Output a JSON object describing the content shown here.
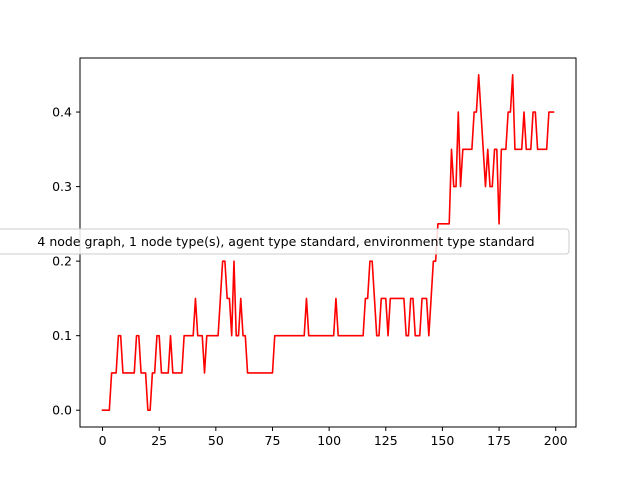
{
  "chart_data": {
    "type": "line",
    "title": "",
    "xlabel": "",
    "ylabel": "",
    "xlim": [
      -9.95,
      208.95
    ],
    "ylim": [
      -0.0225,
      0.4725
    ],
    "grid": false,
    "legend_position": "center-left",
    "x_ticks": [
      0,
      25,
      50,
      75,
      100,
      125,
      150,
      175,
      200
    ],
    "y_ticks": [
      0.0,
      0.1,
      0.2,
      0.3,
      0.4
    ],
    "series": [
      {
        "name": "4 node graph, 1 node type(s), agent type standard, environment type standard",
        "color": "#ff0000",
        "points": [
          [
            0,
            0
          ],
          [
            1,
            0
          ],
          [
            2,
            0
          ],
          [
            3,
            0
          ],
          [
            4,
            0.05
          ],
          [
            5,
            0.05
          ],
          [
            6,
            0.05
          ],
          [
            7,
            0.1
          ],
          [
            8,
            0.1
          ],
          [
            9,
            0.05
          ],
          [
            10,
            0.05
          ],
          [
            11,
            0.05
          ],
          [
            12,
            0.05
          ],
          [
            13,
            0.05
          ],
          [
            14,
            0.05
          ],
          [
            15,
            0.1
          ],
          [
            16,
            0.1
          ],
          [
            17,
            0.05
          ],
          [
            18,
            0.05
          ],
          [
            19,
            0.05
          ],
          [
            20,
            0
          ],
          [
            21,
            0
          ],
          [
            22,
            0.05
          ],
          [
            23,
            0.05
          ],
          [
            24,
            0.1
          ],
          [
            25,
            0.1
          ],
          [
            26,
            0.05
          ],
          [
            27,
            0.05
          ],
          [
            28,
            0.05
          ],
          [
            29,
            0.05
          ],
          [
            30,
            0.1
          ],
          [
            31,
            0.05
          ],
          [
            32,
            0.05
          ],
          [
            33,
            0.05
          ],
          [
            34,
            0.05
          ],
          [
            35,
            0.05
          ],
          [
            36,
            0.1
          ],
          [
            37,
            0.1
          ],
          [
            38,
            0.1
          ],
          [
            39,
            0.1
          ],
          [
            40,
            0.1
          ],
          [
            41,
            0.15
          ],
          [
            42,
            0.1
          ],
          [
            43,
            0.1
          ],
          [
            44,
            0.1
          ],
          [
            45,
            0.05
          ],
          [
            46,
            0.1
          ],
          [
            47,
            0.1
          ],
          [
            48,
            0.1
          ],
          [
            49,
            0.1
          ],
          [
            50,
            0.1
          ],
          [
            51,
            0.1
          ],
          [
            52,
            0.15
          ],
          [
            53,
            0.2
          ],
          [
            54,
            0.2
          ],
          [
            55,
            0.15
          ],
          [
            56,
            0.15
          ],
          [
            57,
            0.1
          ],
          [
            58,
            0.2
          ],
          [
            59,
            0.1
          ],
          [
            60,
            0.1
          ],
          [
            61,
            0.15
          ],
          [
            62,
            0.1
          ],
          [
            63,
            0.1
          ],
          [
            64,
            0.05
          ],
          [
            65,
            0.05
          ],
          [
            66,
            0.05
          ],
          [
            67,
            0.05
          ],
          [
            68,
            0.05
          ],
          [
            69,
            0.05
          ],
          [
            70,
            0.05
          ],
          [
            71,
            0.05
          ],
          [
            72,
            0.05
          ],
          [
            73,
            0.05
          ],
          [
            74,
            0.05
          ],
          [
            75,
            0.05
          ],
          [
            76,
            0.1
          ],
          [
            77,
            0.1
          ],
          [
            78,
            0.1
          ],
          [
            79,
            0.1
          ],
          [
            80,
            0.1
          ],
          [
            81,
            0.1
          ],
          [
            82,
            0.1
          ],
          [
            83,
            0.1
          ],
          [
            84,
            0.1
          ],
          [
            85,
            0.1
          ],
          [
            86,
            0.1
          ],
          [
            87,
            0.1
          ],
          [
            88,
            0.1
          ],
          [
            89,
            0.1
          ],
          [
            90,
            0.15
          ],
          [
            91,
            0.1
          ],
          [
            92,
            0.1
          ],
          [
            93,
            0.1
          ],
          [
            94,
            0.1
          ],
          [
            95,
            0.1
          ],
          [
            96,
            0.1
          ],
          [
            97,
            0.1
          ],
          [
            98,
            0.1
          ],
          [
            99,
            0.1
          ],
          [
            100,
            0.1
          ],
          [
            101,
            0.1
          ],
          [
            102,
            0.1
          ],
          [
            103,
            0.15
          ],
          [
            104,
            0.1
          ],
          [
            105,
            0.1
          ],
          [
            106,
            0.1
          ],
          [
            107,
            0.1
          ],
          [
            108,
            0.1
          ],
          [
            109,
            0.1
          ],
          [
            110,
            0.1
          ],
          [
            111,
            0.1
          ],
          [
            112,
            0.1
          ],
          [
            113,
            0.1
          ],
          [
            114,
            0.1
          ],
          [
            115,
            0.1
          ],
          [
            116,
            0.15
          ],
          [
            117,
            0.15
          ],
          [
            118,
            0.2
          ],
          [
            119,
            0.2
          ],
          [
            120,
            0.15
          ],
          [
            121,
            0.1
          ],
          [
            122,
            0.1
          ],
          [
            123,
            0.15
          ],
          [
            124,
            0.15
          ],
          [
            125,
            0.15
          ],
          [
            126,
            0.1
          ],
          [
            127,
            0.15
          ],
          [
            128,
            0.15
          ],
          [
            129,
            0.15
          ],
          [
            130,
            0.15
          ],
          [
            131,
            0.15
          ],
          [
            132,
            0.15
          ],
          [
            133,
            0.15
          ],
          [
            134,
            0.1
          ],
          [
            135,
            0.1
          ],
          [
            136,
            0.15
          ],
          [
            137,
            0.15
          ],
          [
            138,
            0.1
          ],
          [
            139,
            0.1
          ],
          [
            140,
            0.1
          ],
          [
            141,
            0.15
          ],
          [
            142,
            0.15
          ],
          [
            143,
            0.15
          ],
          [
            144,
            0.1
          ],
          [
            145,
            0.15
          ],
          [
            146,
            0.2
          ],
          [
            147,
            0.2
          ],
          [
            148,
            0.25
          ],
          [
            149,
            0.25
          ],
          [
            150,
            0.25
          ],
          [
            151,
            0.25
          ],
          [
            152,
            0.25
          ],
          [
            153,
            0.25
          ],
          [
            154,
            0.35
          ],
          [
            155,
            0.3
          ],
          [
            156,
            0.3
          ],
          [
            157,
            0.4
          ],
          [
            158,
            0.3
          ],
          [
            159,
            0.35
          ],
          [
            160,
            0.35
          ],
          [
            161,
            0.35
          ],
          [
            162,
            0.35
          ],
          [
            163,
            0.35
          ],
          [
            164,
            0.4
          ],
          [
            165,
            0.4
          ],
          [
            166,
            0.45
          ],
          [
            167,
            0.4
          ],
          [
            168,
            0.35
          ],
          [
            169,
            0.3
          ],
          [
            170,
            0.35
          ],
          [
            171,
            0.3
          ],
          [
            172,
            0.3
          ],
          [
            173,
            0.35
          ],
          [
            174,
            0.35
          ],
          [
            175,
            0.25
          ],
          [
            176,
            0.35
          ],
          [
            177,
            0.35
          ],
          [
            178,
            0.35
          ],
          [
            179,
            0.4
          ],
          [
            180,
            0.4
          ],
          [
            181,
            0.45
          ],
          [
            182,
            0.35
          ],
          [
            183,
            0.35
          ],
          [
            184,
            0.35
          ],
          [
            185,
            0.35
          ],
          [
            186,
            0.4
          ],
          [
            187,
            0.35
          ],
          [
            188,
            0.35
          ],
          [
            189,
            0.35
          ],
          [
            190,
            0.4
          ],
          [
            191,
            0.4
          ],
          [
            192,
            0.35
          ],
          [
            193,
            0.35
          ],
          [
            194,
            0.35
          ],
          [
            195,
            0.35
          ],
          [
            196,
            0.35
          ],
          [
            197,
            0.4
          ],
          [
            198,
            0.4
          ],
          [
            199,
            0.4
          ]
        ]
      }
    ]
  }
}
